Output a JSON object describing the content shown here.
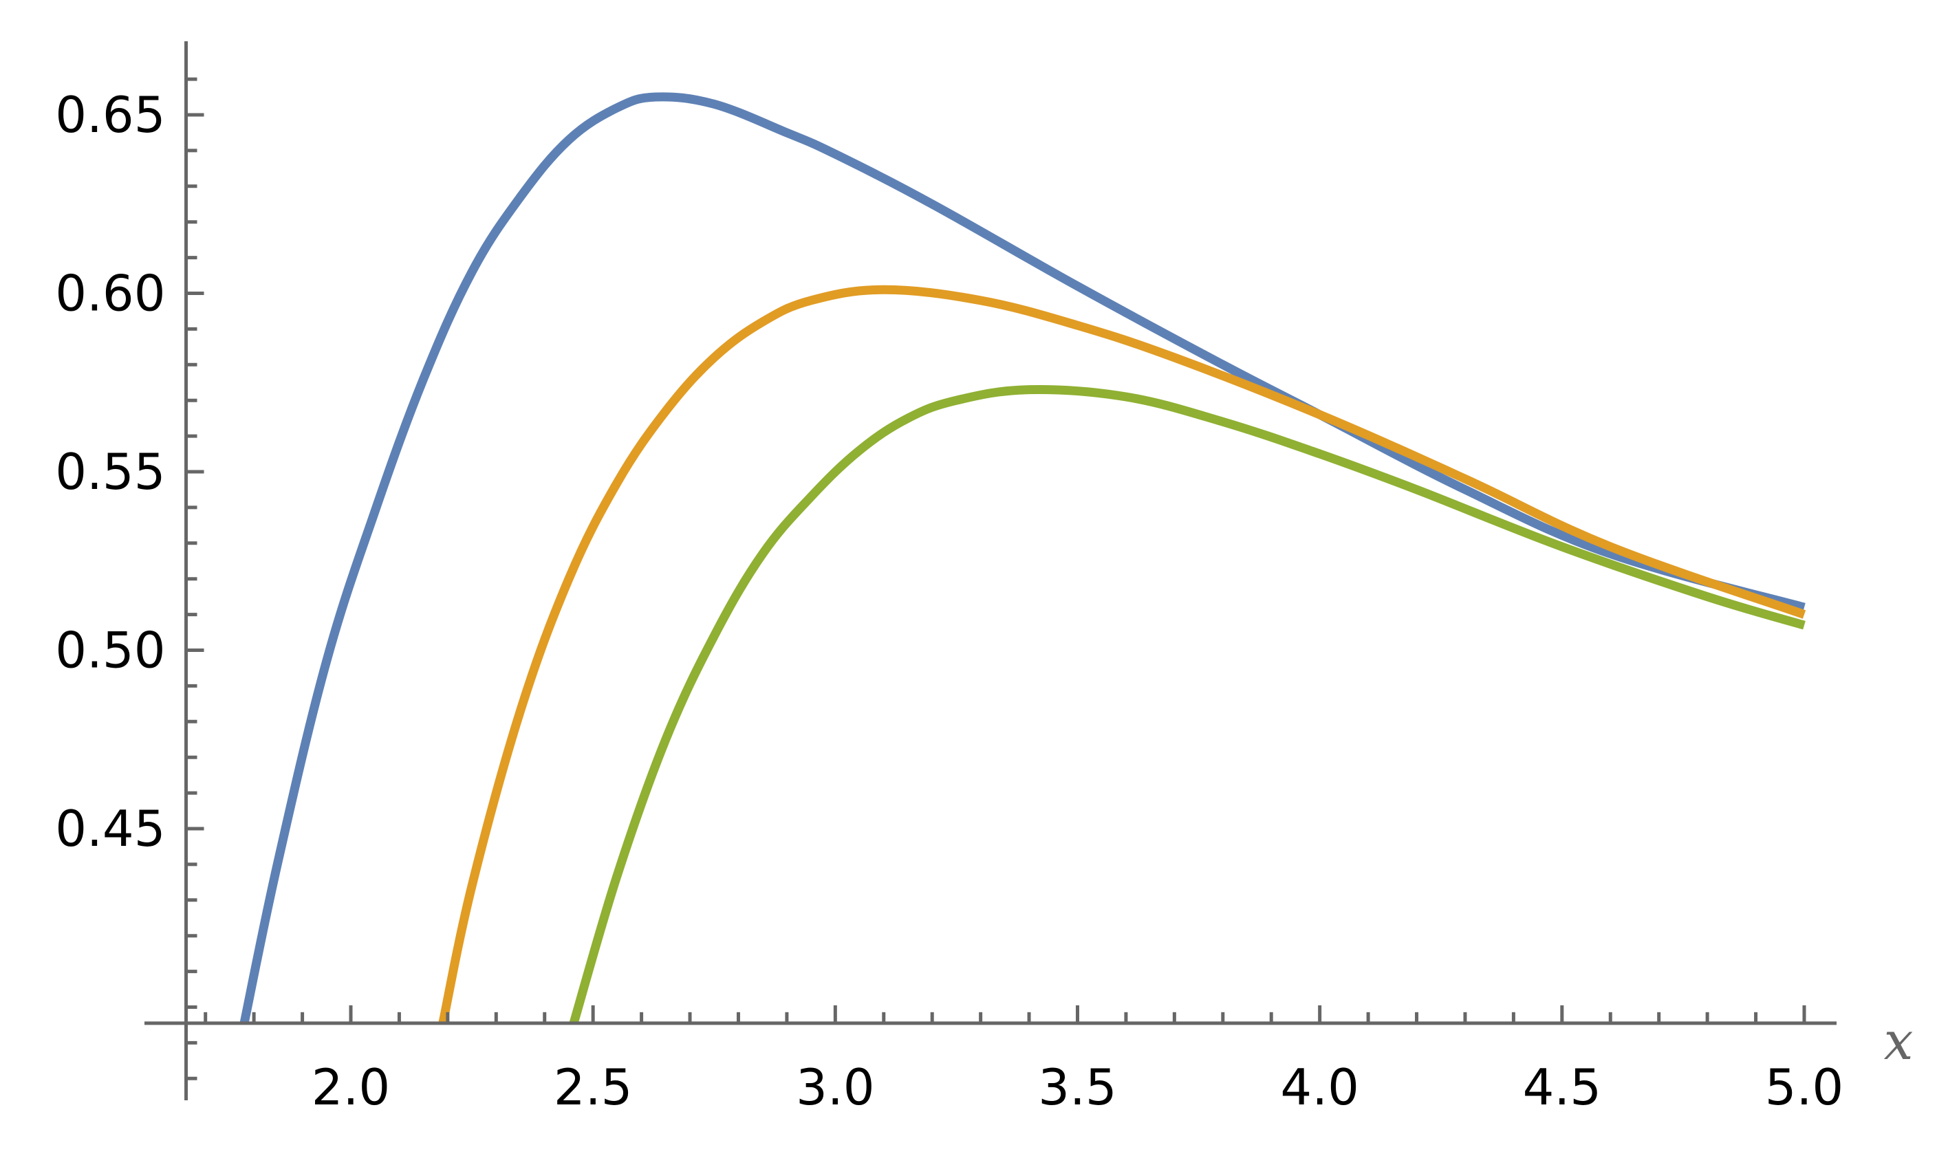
{
  "chart_data": {
    "type": "line",
    "title": "",
    "xlabel": "x",
    "ylabel": "",
    "xlim": [
      1.66,
      5.07
    ],
    "ylim": [
      0.39,
      0.67
    ],
    "axis_origin": {
      "x": 1.66,
      "y": 0.3955
    },
    "x_ticks": [
      {
        "value": 2.0,
        "label": "2.0"
      },
      {
        "value": 2.5,
        "label": "2.5"
      },
      {
        "value": 3.0,
        "label": "3.0"
      },
      {
        "value": 3.5,
        "label": "3.5"
      },
      {
        "value": 4.0,
        "label": "4.0"
      },
      {
        "value": 4.5,
        "label": "4.5"
      },
      {
        "value": 5.0,
        "label": "5.0"
      }
    ],
    "x_minor_step": 0.1,
    "y_ticks": [
      {
        "value": 0.45,
        "label": "0.45"
      },
      {
        "value": 0.5,
        "label": "0.50"
      },
      {
        "value": 0.55,
        "label": "0.55"
      },
      {
        "value": 0.6,
        "label": "0.60"
      },
      {
        "value": 0.65,
        "label": "0.65"
      }
    ],
    "y_minor_step": 0.01,
    "grid": false,
    "legend": "none",
    "axis_color": "#666666",
    "series": [
      {
        "color": "#5e81b5",
        "x": [
          1.78,
          1.85,
          1.95,
          2.05,
          2.15,
          2.25,
          2.35,
          2.45,
          2.55,
          2.63,
          2.75,
          2.9,
          3.0,
          3.2,
          3.5,
          3.8,
          4.0,
          4.3,
          4.6,
          5.0
        ],
        "y": [
          0.3955,
          0.441,
          0.497,
          0.539,
          0.576,
          0.606,
          0.627,
          0.643,
          0.652,
          0.655,
          0.653,
          0.645,
          0.639,
          0.625,
          0.602,
          0.58,
          0.566,
          0.545,
          0.527,
          0.512
        ]
      },
      {
        "color": "#e19c24",
        "x": [
          2.19,
          2.25,
          2.35,
          2.45,
          2.55,
          2.65,
          2.75,
          2.85,
          2.95,
          3.1,
          3.3,
          3.5,
          3.7,
          4.0,
          4.3,
          4.6,
          5.0
        ],
        "y": [
          0.3955,
          0.434,
          0.483,
          0.52,
          0.547,
          0.567,
          0.582,
          0.592,
          0.598,
          0.601,
          0.598,
          0.591,
          0.582,
          0.566,
          0.548,
          0.529,
          0.51
        ]
      },
      {
        "color": "#8fb032",
        "x": [
          2.46,
          2.55,
          2.65,
          2.75,
          2.85,
          2.95,
          3.05,
          3.15,
          3.25,
          3.4,
          3.6,
          3.8,
          4.0,
          4.2,
          4.5,
          4.8,
          5.0
        ],
        "y": [
          0.3955,
          0.437,
          0.475,
          0.504,
          0.527,
          0.543,
          0.556,
          0.565,
          0.57,
          0.573,
          0.571,
          0.564,
          0.555,
          0.545,
          0.529,
          0.515,
          0.507
        ]
      }
    ]
  }
}
